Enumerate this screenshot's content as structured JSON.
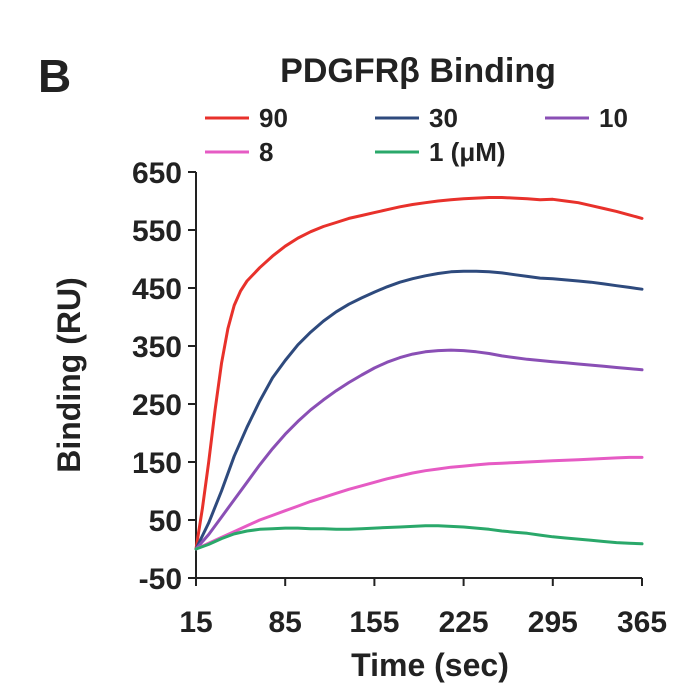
{
  "panel_label": "B",
  "chart_data": {
    "type": "line",
    "title": "PDGFRβ Binding",
    "xlabel": "Time (sec)",
    "ylabel": "Binding (RU)",
    "xlim": [
      15,
      365
    ],
    "ylim": [
      -50,
      650
    ],
    "x_ticks": [
      15,
      85,
      155,
      225,
      295,
      365
    ],
    "y_ticks": [
      650,
      550,
      450,
      350,
      250,
      150,
      50,
      -50
    ],
    "grid": false,
    "legend_position": "top",
    "series": [
      {
        "name": "90",
        "color": "#e8312b",
        "x": [
          15,
          20,
          25,
          30,
          35,
          40,
          45,
          50,
          55,
          65,
          75,
          85,
          95,
          105,
          115,
          125,
          135,
          145,
          155,
          165,
          175,
          185,
          195,
          205,
          215,
          225,
          235,
          245,
          255,
          265,
          275,
          285,
          295,
          305,
          315,
          325,
          335,
          345,
          355,
          365
        ],
        "y": [
          0,
          70,
          150,
          240,
          320,
          380,
          420,
          445,
          462,
          485,
          505,
          522,
          536,
          547,
          556,
          563,
          570,
          575,
          580,
          585,
          590,
          594,
          597,
          600,
          602,
          604,
          605,
          606,
          606,
          605,
          604,
          602,
          603,
          600,
          597,
          592,
          587,
          582,
          576,
          570
        ]
      },
      {
        "name": "30",
        "color": "#2e4a7d",
        "x": [
          15,
          25,
          35,
          45,
          55,
          65,
          75,
          85,
          95,
          105,
          115,
          125,
          135,
          145,
          155,
          165,
          175,
          185,
          195,
          205,
          215,
          225,
          235,
          245,
          255,
          265,
          275,
          285,
          295,
          305,
          315,
          325,
          335,
          345,
          355,
          365
        ],
        "y": [
          0,
          45,
          100,
          160,
          210,
          255,
          295,
          325,
          352,
          374,
          393,
          409,
          422,
          433,
          443,
          452,
          460,
          466,
          471,
          475,
          478,
          479,
          479,
          478,
          476,
          473,
          470,
          467,
          466,
          464,
          462,
          460,
          457,
          454,
          451,
          448
        ]
      },
      {
        "name": "10",
        "color": "#8a4fb5",
        "x": [
          15,
          25,
          35,
          45,
          55,
          65,
          75,
          85,
          95,
          105,
          115,
          125,
          135,
          145,
          155,
          165,
          175,
          185,
          195,
          205,
          215,
          225,
          235,
          245,
          255,
          265,
          275,
          285,
          295,
          305,
          315,
          325,
          335,
          345,
          355,
          365
        ],
        "y": [
          0,
          25,
          55,
          85,
          115,
          145,
          173,
          198,
          220,
          240,
          257,
          273,
          287,
          300,
          312,
          322,
          330,
          336,
          340,
          342,
          343,
          342,
          340,
          337,
          333,
          330,
          327,
          325,
          323,
          321,
          319,
          317,
          315,
          313,
          311,
          309
        ]
      },
      {
        "name": "8",
        "color": "#e65bc4",
        "x": [
          15,
          25,
          35,
          45,
          55,
          65,
          75,
          85,
          95,
          105,
          115,
          125,
          135,
          145,
          155,
          165,
          175,
          185,
          195,
          205,
          215,
          225,
          235,
          245,
          255,
          265,
          275,
          285,
          295,
          305,
          315,
          325,
          335,
          345,
          355,
          365
        ],
        "y": [
          0,
          10,
          20,
          30,
          40,
          50,
          58,
          66,
          74,
          82,
          89,
          96,
          103,
          109,
          115,
          121,
          126,
          131,
          135,
          138,
          141,
          143,
          145,
          147,
          148,
          149,
          150,
          151,
          152,
          153,
          154,
          155,
          156,
          157,
          158,
          158
        ]
      },
      {
        "name": "1 (μM)",
        "color": "#2aa86a",
        "x": [
          15,
          25,
          35,
          45,
          55,
          65,
          75,
          85,
          95,
          105,
          115,
          125,
          135,
          145,
          155,
          165,
          175,
          185,
          195,
          205,
          215,
          225,
          235,
          245,
          255,
          265,
          275,
          285,
          295,
          305,
          315,
          325,
          335,
          345,
          355,
          365
        ],
        "y": [
          0,
          8,
          18,
          26,
          31,
          34,
          35,
          36,
          36,
          35,
          35,
          34,
          34,
          35,
          36,
          37,
          38,
          39,
          40,
          40,
          39,
          38,
          36,
          34,
          31,
          29,
          27,
          24,
          21,
          19,
          17,
          15,
          13,
          11,
          10,
          9
        ]
      }
    ]
  }
}
